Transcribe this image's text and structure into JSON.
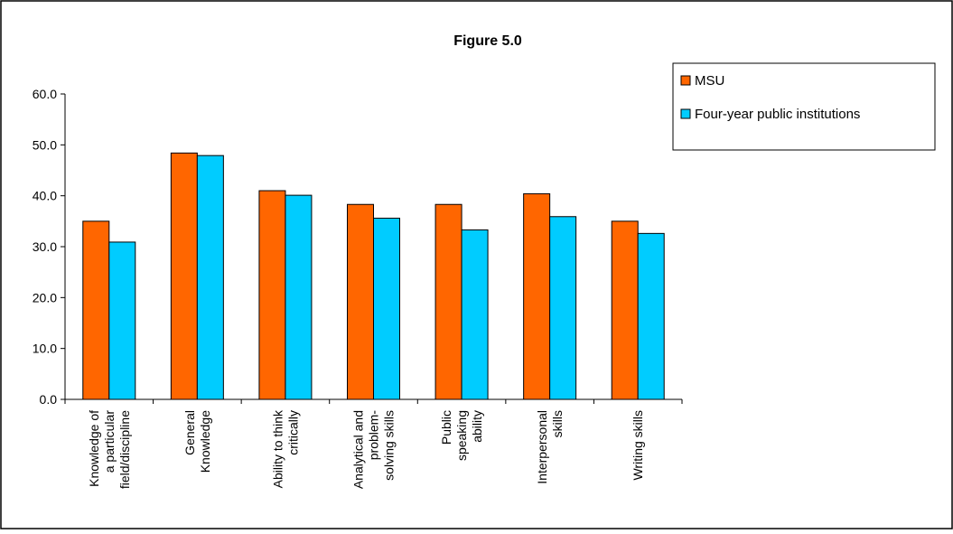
{
  "chart_data": {
    "type": "bar",
    "title": "Figure 5.0",
    "categories": [
      [
        "Knowledge of",
        "a particular",
        "field/discipline"
      ],
      [
        "General",
        "Knowledge"
      ],
      [
        "Ability to think",
        "critically"
      ],
      [
        "Analytical and",
        "problem-",
        "solving skills"
      ],
      [
        "Public",
        "speaking",
        "ability"
      ],
      [
        "Interpersonal",
        "skills"
      ],
      [
        "Writing skills"
      ]
    ],
    "series": [
      {
        "name": "MSU",
        "color": "#ff6600",
        "values": [
          35.0,
          48.4,
          41.0,
          38.3,
          38.3,
          40.4,
          35.0
        ]
      },
      {
        "name": "Four-year public institutions",
        "color": "#00ccff",
        "values": [
          30.9,
          47.9,
          40.1,
          35.6,
          33.3,
          35.9,
          32.6
        ]
      }
    ],
    "ylim": [
      0,
      60
    ],
    "yticks": [
      "0.0",
      "10.0",
      "20.0",
      "30.0",
      "40.0",
      "50.0",
      "60.0"
    ],
    "legend_position": "top-right",
    "grid": false
  }
}
